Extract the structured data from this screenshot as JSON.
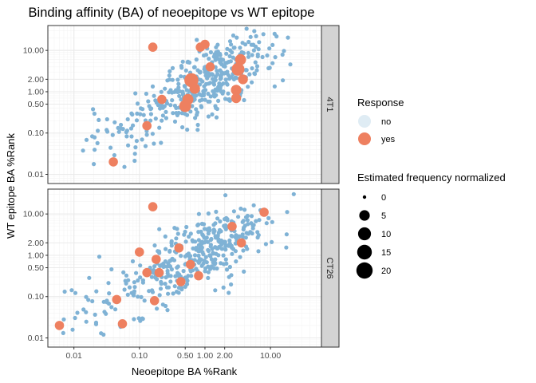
{
  "chart_data": {
    "type": "scatter",
    "title": "Binding affinity (BA) of neoepitope vs WT epitope",
    "xlabel": "Neoepitope BA %Rank",
    "ylabel": "WT epitope BA %Rank",
    "x_scale": "log10",
    "y_scale": "log10",
    "xlim": [
      0.004,
      60
    ],
    "ylim": [
      0.006,
      40
    ],
    "x_ticks": [
      0.01,
      0.1,
      0.5,
      1,
      2,
      10
    ],
    "x_tick_labels": [
      "0.01",
      "0.10",
      "0.50",
      "1.00",
      "2.00",
      "10.00"
    ],
    "y_ticks": [
      0.01,
      0.1,
      0.5,
      1,
      2,
      10
    ],
    "y_tick_labels": [
      "0.01",
      "0.10",
      "0.50",
      "1.00",
      "2.00",
      "10.00"
    ],
    "grid": true,
    "colors": {
      "no": "#7fb2d5",
      "yes": "#ee8060",
      "strip": "#d3d3d3",
      "panel_border": "#333333",
      "grid_major": "#ebebeb"
    },
    "legend": {
      "placement": "right",
      "response": {
        "title": "Response",
        "entries": [
          "no",
          "yes"
        ]
      },
      "size": {
        "title": "Estimated frequency normalized",
        "entries": [
          "0",
          "5",
          "10",
          "15",
          "20"
        ],
        "values": [
          0,
          5,
          10,
          15,
          20
        ]
      }
    },
    "panels": [
      {
        "strip_label": "4T1",
        "yes_points": [
          {
            "x": 0.04,
            "y": 0.02,
            "size": 3
          },
          {
            "x": 0.13,
            "y": 0.15,
            "size": 3
          },
          {
            "x": 0.16,
            "y": 12,
            "size": 3
          },
          {
            "x": 0.22,
            "y": 0.65,
            "size": 3
          },
          {
            "x": 0.5,
            "y": 0.45,
            "size": 8
          },
          {
            "x": 0.55,
            "y": 0.65,
            "size": 6
          },
          {
            "x": 0.62,
            "y": 1.9,
            "size": 13
          },
          {
            "x": 0.7,
            "y": 1.2,
            "size": 5
          },
          {
            "x": 0.85,
            "y": 12,
            "size": 3
          },
          {
            "x": 1.0,
            "y": 14,
            "size": 3
          },
          {
            "x": 1.2,
            "y": 4,
            "size": 3
          },
          {
            "x": 3.0,
            "y": 1.1,
            "size": 5
          },
          {
            "x": 3.2,
            "y": 3.5,
            "size": 10
          },
          {
            "x": 3.5,
            "y": 6,
            "size": 6
          },
          {
            "x": 3.0,
            "y": 0.7,
            "size": 4
          },
          {
            "x": 3.8,
            "y": 2.0,
            "size": 4
          }
        ]
      },
      {
        "strip_label": "CT26",
        "yes_points": [
          {
            "x": 0.006,
            "y": 0.02,
            "size": 3
          },
          {
            "x": 0.045,
            "y": 0.085,
            "size": 3
          },
          {
            "x": 0.055,
            "y": 0.022,
            "size": 3
          },
          {
            "x": 0.1,
            "y": 1.2,
            "size": 3
          },
          {
            "x": 0.13,
            "y": 0.38,
            "size": 3
          },
          {
            "x": 0.16,
            "y": 15,
            "size": 3
          },
          {
            "x": 0.17,
            "y": 0.08,
            "size": 3
          },
          {
            "x": 0.18,
            "y": 0.8,
            "size": 3
          },
          {
            "x": 0.2,
            "y": 0.38,
            "size": 3
          },
          {
            "x": 0.4,
            "y": 1.5,
            "size": 3
          },
          {
            "x": 0.43,
            "y": 0.23,
            "size": 3
          },
          {
            "x": 0.6,
            "y": 0.6,
            "size": 3
          },
          {
            "x": 0.8,
            "y": 0.32,
            "size": 3
          },
          {
            "x": 2.6,
            "y": 5,
            "size": 3
          },
          {
            "x": 3.6,
            "y": 2.0,
            "size": 3
          },
          {
            "x": 8.0,
            "y": 11,
            "size": 3
          }
        ]
      }
    ]
  }
}
